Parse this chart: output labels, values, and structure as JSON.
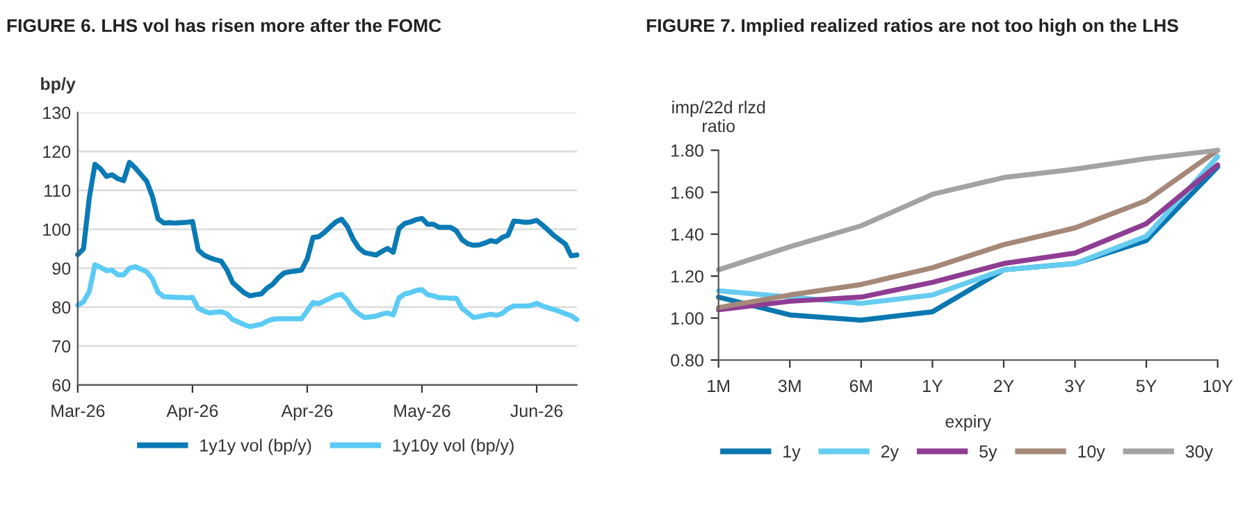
{
  "chart_data": [
    {
      "type": "line",
      "title": "FIGURE 6. LHS vol has risen more after the FOMC",
      "ylabel": "bp/y",
      "categories": [
        "Mar-26",
        null,
        null,
        null,
        null,
        null,
        null,
        null,
        null,
        null,
        null,
        null,
        null,
        null,
        null,
        null,
        null,
        null,
        null,
        null,
        "Apr-26",
        null,
        null,
        null,
        null,
        null,
        null,
        null,
        null,
        null,
        null,
        null,
        null,
        null,
        null,
        null,
        null,
        null,
        null,
        null,
        "Apr-26",
        null,
        null,
        null,
        null,
        null,
        null,
        null,
        null,
        null,
        null,
        null,
        null,
        null,
        null,
        null,
        null,
        null,
        null,
        null,
        "May-26",
        null,
        null,
        null,
        null,
        null,
        null,
        null,
        null,
        null,
        null,
        null,
        null,
        null,
        null,
        null,
        null,
        null,
        null,
        null,
        "Jun-26",
        null,
        null,
        null,
        null,
        null,
        null,
        null
      ],
      "ylim": [
        60,
        130
      ],
      "yticks": [
        60,
        70,
        80,
        90,
        100,
        110,
        120,
        130
      ],
      "grid": "y",
      "legend": "bottom",
      "series": [
        {
          "name": "1y1y vol (bp/y)",
          "color": "#0a7ab5",
          "values": [
            93.5,
            95,
            108,
            116.7,
            115.5,
            113.6,
            114,
            113,
            112.5,
            117.2,
            115.8,
            114.1,
            112.4,
            108.5,
            102.7,
            101.6,
            101.7,
            101.6,
            101.7,
            101.8,
            102,
            94.7,
            93.4,
            92.7,
            92.2,
            91.8,
            89.6,
            86.3,
            85,
            83.7,
            82.9,
            83.2,
            83.4,
            84.9,
            85.9,
            87.6,
            88.8,
            89.1,
            89.3,
            89.5,
            92.4,
            97.9,
            98.1,
            99.2,
            100.6,
            101.9,
            102.6,
            100.7,
            97.5,
            95.2,
            94,
            93.7,
            93.4,
            94.3,
            95.1,
            94.1,
            100.2,
            101.5,
            101.9,
            102.5,
            102.8,
            101.3,
            101.3,
            100.5,
            100.5,
            100.5,
            99.6,
            97.3,
            96.3,
            95.9,
            96,
            96.5,
            97.1,
            96.8,
            97.9,
            98.5,
            102.1,
            102,
            101.8,
            101.9,
            102.3,
            101.1,
            99.8,
            98.4,
            97.3,
            96.2,
            93.2,
            93.4
          ]
        },
        {
          "name": "1y10y vol (bp/y)",
          "color": "#5bcbf5",
          "values": [
            80.5,
            81.4,
            84,
            90.9,
            90.2,
            89.4,
            89.5,
            88.3,
            88.3,
            90,
            90.4,
            89.8,
            89.1,
            87.3,
            83.8,
            82.7,
            82.6,
            82.5,
            82.5,
            82.4,
            82.5,
            79.7,
            79,
            78.5,
            78.7,
            78.8,
            78.3,
            76.8,
            76.2,
            75.5,
            75,
            75.3,
            75.6,
            76.4,
            76.9,
            77,
            77,
            77,
            77,
            77,
            79.1,
            81.2,
            80.9,
            81.6,
            82.3,
            83,
            83.3,
            81.8,
            79.5,
            78.3,
            77.3,
            77.5,
            77.7,
            78.2,
            78.5,
            78,
            82.4,
            83.4,
            83.7,
            84.3,
            84.5,
            83.2,
            82.9,
            82.4,
            82.4,
            82.3,
            82.3,
            79.7,
            78.5,
            77.3,
            77.6,
            77.9,
            78.2,
            77.9,
            78.4,
            79.6,
            80.3,
            80.3,
            80.3,
            80.4,
            81,
            80.3,
            79.8,
            79.4,
            78.9,
            78.3,
            77.8,
            76.8
          ]
        }
      ]
    },
    {
      "type": "line",
      "title": "FIGURE 7. Implied realized ratios are not too high on the LHS",
      "ylabel": "imp/22d rlzd\nratio",
      "xlabel": "expiry",
      "categories": [
        "1M",
        "3M",
        "6M",
        "1Y",
        "2Y",
        "3Y",
        "5Y",
        "10Y"
      ],
      "ylim": [
        0.8,
        1.8
      ],
      "yticks": [
        {
          "value": 0.8,
          "label": "0.80"
        },
        {
          "value": 1.0,
          "label": "1.00"
        },
        {
          "value": 1.2,
          "label": "1.20"
        },
        {
          "value": 1.4,
          "label": "1.40"
        },
        {
          "value": 1.6,
          "label": "1.60"
        },
        {
          "value": 1.8,
          "label": "1.80"
        }
      ],
      "legend": "bottom",
      "series": [
        {
          "name": "1y",
          "color": "#0a77b0",
          "values": [
            1.1,
            1.015,
            0.99,
            1.03,
            1.23,
            1.26,
            1.37,
            1.72
          ]
        },
        {
          "name": "2y",
          "color": "#66ccf0",
          "values": [
            1.13,
            1.1,
            1.07,
            1.11,
            1.23,
            1.26,
            1.39,
            1.77
          ]
        },
        {
          "name": "5y",
          "color": "#8e3d93",
          "values": [
            1.04,
            1.08,
            1.1,
            1.17,
            1.26,
            1.31,
            1.45,
            1.73
          ]
        },
        {
          "name": "10y",
          "color": "#a58878",
          "values": [
            1.05,
            1.11,
            1.16,
            1.24,
            1.35,
            1.43,
            1.56,
            1.8
          ]
        },
        {
          "name": "30y",
          "color": "#a3a3a3",
          "values": [
            1.23,
            1.34,
            1.44,
            1.59,
            1.67,
            1.71,
            1.76,
            1.8
          ]
        }
      ]
    }
  ]
}
